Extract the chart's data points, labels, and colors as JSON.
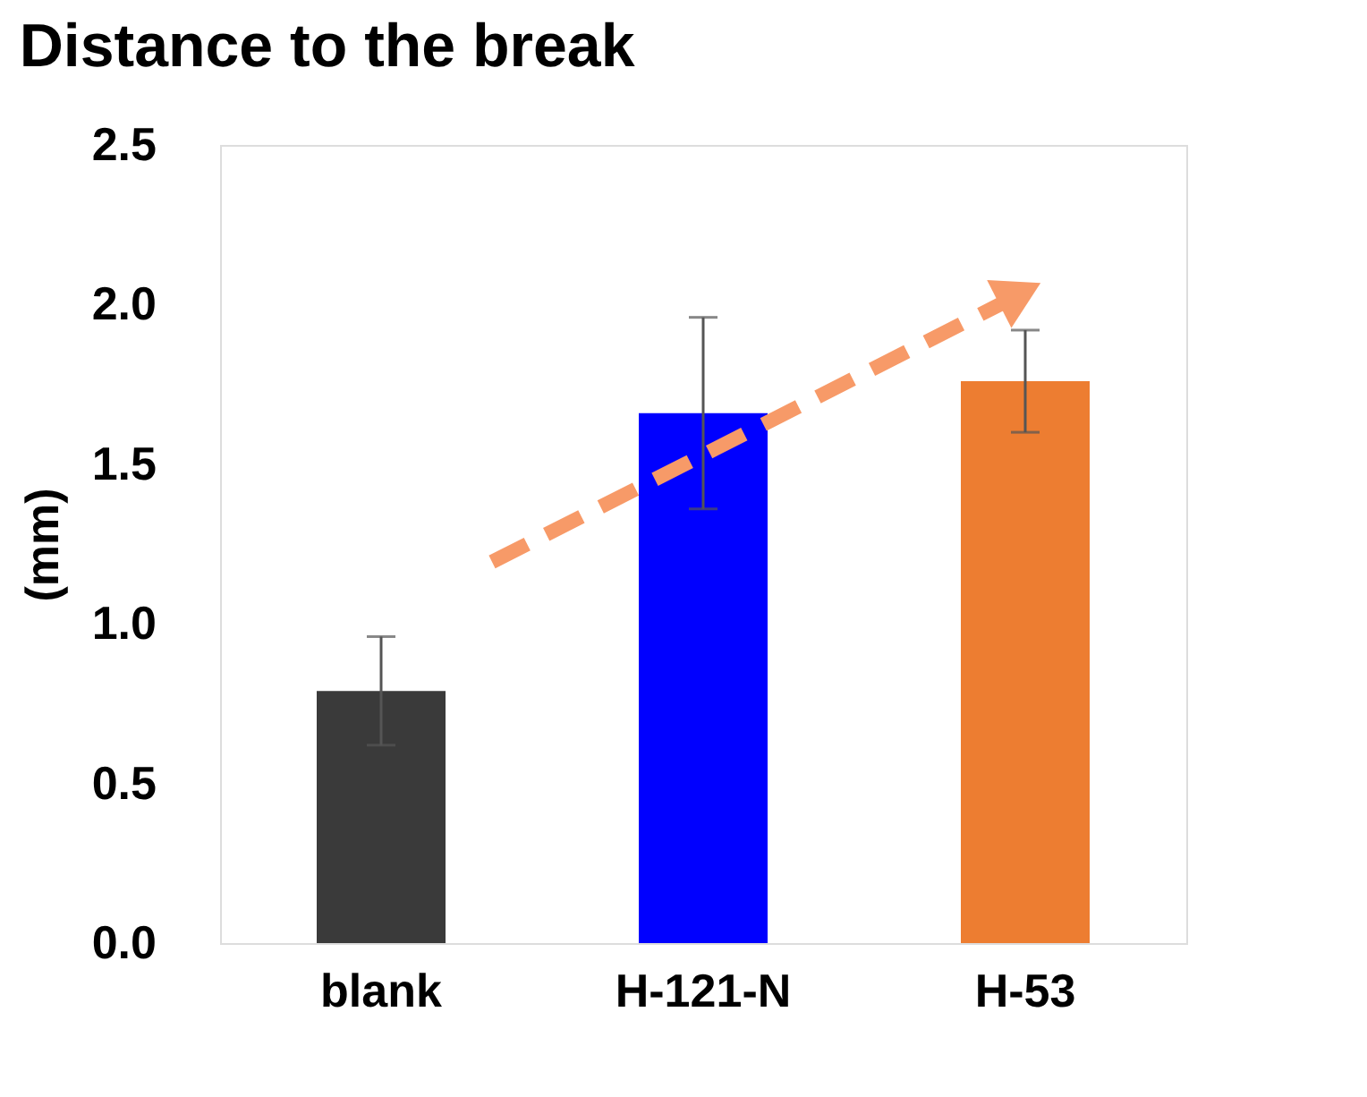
{
  "chart_data": {
    "type": "bar",
    "title": "Distance to the break",
    "ylabel": "(mm)",
    "categories": [
      "blank",
      "H-121-N",
      "H-53"
    ],
    "values": [
      0.79,
      1.66,
      1.76
    ],
    "colors": [
      "#3a3a3a",
      "#0000ff",
      "#ed7d31"
    ],
    "errors": [
      0.17,
      0.3,
      0.16
    ],
    "ylim": [
      0,
      2.5
    ],
    "yticks": [
      {
        "value": 0,
        "label": "0.0"
      },
      {
        "value": 0.5,
        "label": "0.5"
      },
      {
        "value": 1,
        "label": "1.0"
      },
      {
        "value": 1.5,
        "label": "1.5"
      },
      {
        "value": 2,
        "label": "2.0"
      },
      {
        "value": 2.5,
        "label": "2.5"
      }
    ],
    "grid": false
  }
}
